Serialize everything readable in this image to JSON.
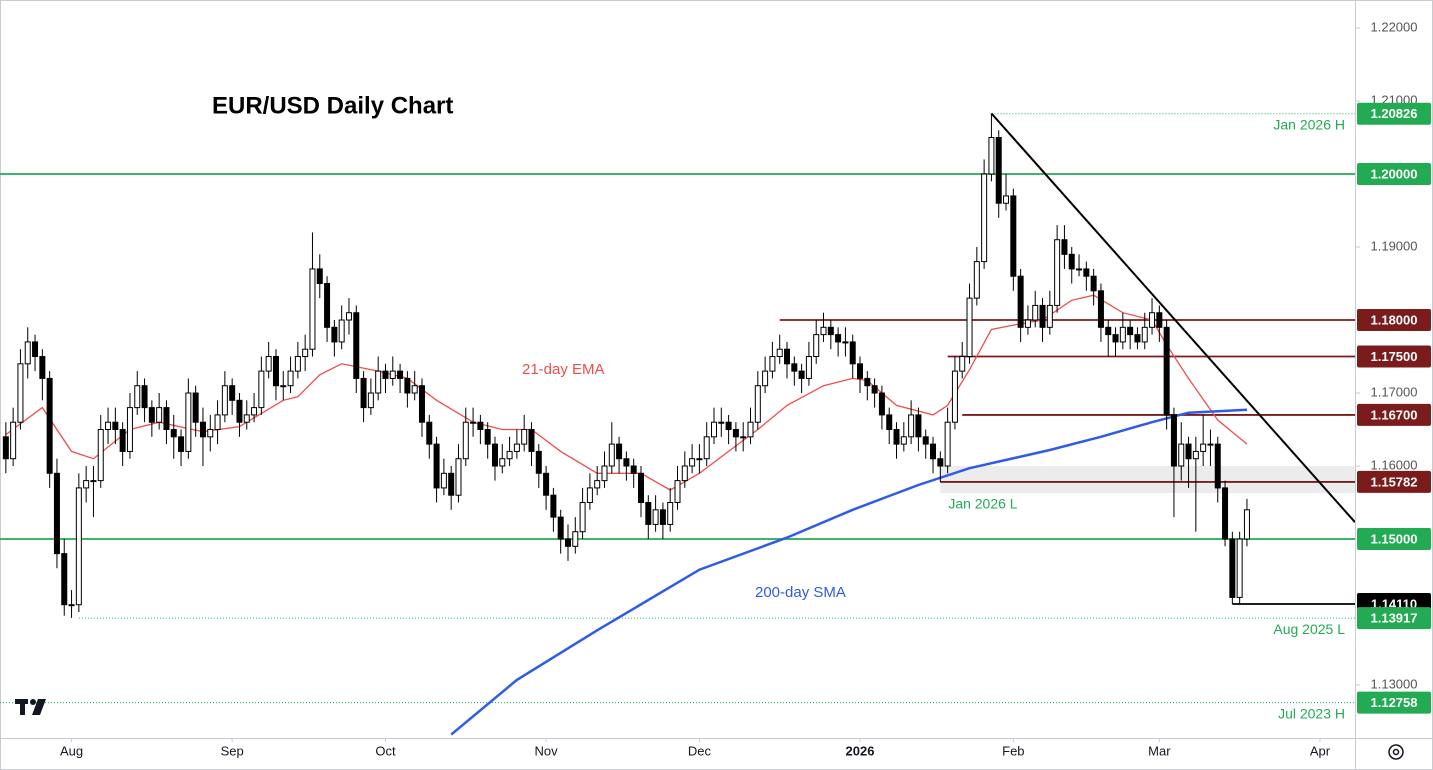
{
  "chart_data": {
    "type": "candlestick",
    "title": "EUR/USD Daily Chart",
    "xlim": [
      -0.8,
      184.8
    ],
    "xticks": [
      {
        "value": 9,
        "label": "Aug"
      },
      {
        "value": 31,
        "label": "Sep"
      },
      {
        "value": 52,
        "label": "Oct"
      },
      {
        "value": 74,
        "label": "Nov"
      },
      {
        "value": 95,
        "label": "Dec"
      },
      {
        "value": 117,
        "label": "2026"
      },
      {
        "value": 138,
        "label": "Feb"
      },
      {
        "value": 158,
        "label": "Mar"
      },
      {
        "value": 180,
        "label": "Apr"
      }
    ],
    "ylim": [
      1.12274,
      1.22384
    ],
    "yticks": [
      {
        "value": 1.13,
        "label": "1.13000"
      },
      {
        "value": 1.16,
        "label": "1.16000"
      },
      {
        "value": 1.17,
        "label": "1.17000"
      },
      {
        "value": 1.19,
        "label": "1.19000"
      },
      {
        "value": 1.21,
        "label": "1.21000"
      },
      {
        "value": 1.22,
        "label": "1.22000"
      }
    ],
    "up_color": "#ffffff",
    "down_color": "#000000",
    "candles": [
      [
        1.164,
        1.166,
        1.159,
        1.161
      ],
      [
        1.161,
        1.168,
        1.16,
        1.166
      ],
      [
        1.166,
        1.176,
        1.165,
        1.174
      ],
      [
        1.174,
        1.179,
        1.172,
        1.177
      ],
      [
        1.177,
        1.178,
        1.173,
        1.175
      ],
      [
        1.175,
        1.176,
        1.169,
        1.172
      ],
      [
        1.172,
        1.173,
        1.157,
        1.159
      ],
      [
        1.159,
        1.161,
        1.146,
        1.148
      ],
      [
        1.148,
        1.15,
        1.1395,
        1.141
      ],
      [
        1.141,
        1.143,
        1.1392,
        1.141
      ],
      [
        1.141,
        1.159,
        1.14,
        1.157
      ],
      [
        1.157,
        1.16,
        1.155,
        1.158
      ],
      [
        1.158,
        1.16,
        1.153,
        1.158
      ],
      [
        1.158,
        1.167,
        1.157,
        1.165
      ],
      [
        1.165,
        1.168,
        1.163,
        1.166
      ],
      [
        1.166,
        1.168,
        1.163,
        1.165
      ],
      [
        1.165,
        1.166,
        1.16,
        1.162
      ],
      [
        1.162,
        1.17,
        1.161,
        1.168
      ],
      [
        1.168,
        1.173,
        1.167,
        1.171
      ],
      [
        1.171,
        1.172,
        1.166,
        1.168
      ],
      [
        1.168,
        1.169,
        1.164,
        1.166
      ],
      [
        1.166,
        1.17,
        1.165,
        1.168
      ],
      [
        1.168,
        1.169,
        1.163,
        1.165
      ],
      [
        1.165,
        1.167,
        1.161,
        1.164
      ],
      [
        1.164,
        1.165,
        1.16,
        1.162
      ],
      [
        1.162,
        1.172,
        1.161,
        1.17
      ],
      [
        1.17,
        1.171,
        1.164,
        1.166
      ],
      [
        1.166,
        1.168,
        1.16,
        1.164
      ],
      [
        1.164,
        1.167,
        1.162,
        1.165
      ],
      [
        1.165,
        1.169,
        1.163,
        1.167
      ],
      [
        1.167,
        1.173,
        1.166,
        1.171
      ],
      [
        1.171,
        1.172,
        1.167,
        1.169
      ],
      [
        1.169,
        1.17,
        1.164,
        1.166
      ],
      [
        1.166,
        1.169,
        1.165,
        1.167
      ],
      [
        1.167,
        1.17,
        1.166,
        1.168
      ],
      [
        1.168,
        1.175,
        1.167,
        1.173
      ],
      [
        1.173,
        1.177,
        1.172,
        1.175
      ],
      [
        1.175,
        1.176,
        1.169,
        1.171
      ],
      [
        1.171,
        1.173,
        1.169,
        1.171
      ],
      [
        1.171,
        1.175,
        1.17,
        1.173
      ],
      [
        1.173,
        1.177,
        1.172,
        1.175
      ],
      [
        1.175,
        1.178,
        1.173,
        1.176
      ],
      [
        1.176,
        1.192,
        1.175,
        1.187
      ],
      [
        1.187,
        1.189,
        1.183,
        1.185
      ],
      [
        1.185,
        1.186,
        1.177,
        1.179
      ],
      [
        1.179,
        1.18,
        1.175,
        1.177
      ],
      [
        1.177,
        1.182,
        1.176,
        1.18
      ],
      [
        1.18,
        1.183,
        1.178,
        1.181
      ],
      [
        1.181,
        1.182,
        1.17,
        1.172
      ],
      [
        1.172,
        1.173,
        1.166,
        1.168
      ],
      [
        1.168,
        1.172,
        1.167,
        1.17
      ],
      [
        1.17,
        1.175,
        1.169,
        1.173
      ],
      [
        1.173,
        1.174,
        1.17,
        1.172
      ],
      [
        1.172,
        1.175,
        1.171,
        1.173
      ],
      [
        1.173,
        1.174,
        1.17,
        1.172
      ],
      [
        1.172,
        1.173,
        1.168,
        1.17
      ],
      [
        1.17,
        1.173,
        1.169,
        1.171
      ],
      [
        1.171,
        1.172,
        1.164,
        1.166
      ],
      [
        1.166,
        1.167,
        1.161,
        1.163
      ],
      [
        1.163,
        1.164,
        1.155,
        1.157
      ],
      [
        1.157,
        1.161,
        1.156,
        1.159
      ],
      [
        1.159,
        1.16,
        1.154,
        1.156
      ],
      [
        1.156,
        1.163,
        1.155,
        1.161
      ],
      [
        1.161,
        1.168,
        1.16,
        1.166
      ],
      [
        1.166,
        1.168,
        1.164,
        1.166
      ],
      [
        1.166,
        1.167,
        1.163,
        1.165
      ],
      [
        1.165,
        1.166,
        1.161,
        1.163
      ],
      [
        1.163,
        1.164,
        1.158,
        1.16
      ],
      [
        1.16,
        1.163,
        1.159,
        1.161
      ],
      [
        1.161,
        1.164,
        1.16,
        1.162
      ],
      [
        1.162,
        1.165,
        1.161,
        1.163
      ],
      [
        1.163,
        1.167,
        1.162,
        1.165
      ],
      [
        1.165,
        1.166,
        1.16,
        1.162
      ],
      [
        1.162,
        1.163,
        1.157,
        1.159
      ],
      [
        1.159,
        1.16,
        1.154,
        1.156
      ],
      [
        1.156,
        1.157,
        1.151,
        1.153
      ],
      [
        1.153,
        1.154,
        1.148,
        1.15
      ],
      [
        1.15,
        1.152,
        1.147,
        1.149
      ],
      [
        1.149,
        1.153,
        1.148,
        1.151
      ],
      [
        1.151,
        1.157,
        1.15,
        1.155
      ],
      [
        1.155,
        1.159,
        1.154,
        1.157
      ],
      [
        1.157,
        1.16,
        1.156,
        1.158
      ],
      [
        1.158,
        1.162,
        1.157,
        1.16
      ],
      [
        1.16,
        1.166,
        1.159,
        1.163
      ],
      [
        1.163,
        1.164,
        1.159,
        1.161
      ],
      [
        1.161,
        1.162,
        1.158,
        1.16
      ],
      [
        1.16,
        1.161,
        1.157,
        1.159
      ],
      [
        1.159,
        1.16,
        1.153,
        1.155
      ],
      [
        1.155,
        1.156,
        1.15,
        1.152
      ],
      [
        1.152,
        1.156,
        1.151,
        1.154
      ],
      [
        1.154,
        1.155,
        1.15,
        1.152
      ],
      [
        1.152,
        1.157,
        1.151,
        1.155
      ],
      [
        1.155,
        1.16,
        1.154,
        1.158
      ],
      [
        1.158,
        1.162,
        1.157,
        1.16
      ],
      [
        1.16,
        1.163,
        1.159,
        1.161
      ],
      [
        1.161,
        1.163,
        1.159,
        1.161
      ],
      [
        1.161,
        1.166,
        1.16,
        1.164
      ],
      [
        1.164,
        1.168,
        1.163,
        1.166
      ],
      [
        1.166,
        1.168,
        1.164,
        1.166
      ],
      [
        1.166,
        1.167,
        1.163,
        1.165
      ],
      [
        1.165,
        1.166,
        1.162,
        1.164
      ],
      [
        1.164,
        1.166,
        1.162,
        1.164
      ],
      [
        1.164,
        1.168,
        1.163,
        1.166
      ],
      [
        1.166,
        1.173,
        1.165,
        1.171
      ],
      [
        1.171,
        1.175,
        1.17,
        1.173
      ],
      [
        1.173,
        1.177,
        1.172,
        1.175
      ],
      [
        1.175,
        1.178,
        1.174,
        1.176
      ],
      [
        1.176,
        1.177,
        1.172,
        1.174
      ],
      [
        1.174,
        1.175,
        1.171,
        1.173
      ],
      [
        1.173,
        1.174,
        1.17,
        1.172
      ],
      [
        1.172,
        1.177,
        1.171,
        1.175
      ],
      [
        1.175,
        1.18,
        1.174,
        1.178
      ],
      [
        1.178,
        1.181,
        1.177,
        1.179
      ],
      [
        1.179,
        1.18,
        1.176,
        1.178
      ],
      [
        1.178,
        1.179,
        1.175,
        1.177
      ],
      [
        1.177,
        1.179,
        1.175,
        1.177
      ],
      [
        1.177,
        1.178,
        1.172,
        1.174
      ],
      [
        1.174,
        1.175,
        1.17,
        1.172
      ],
      [
        1.172,
        1.173,
        1.169,
        1.171
      ],
      [
        1.171,
        1.172,
        1.168,
        1.17
      ],
      [
        1.17,
        1.171,
        1.165,
        1.167
      ],
      [
        1.167,
        1.168,
        1.163,
        1.165
      ],
      [
        1.165,
        1.166,
        1.161,
        1.163
      ],
      [
        1.163,
        1.166,
        1.162,
        1.164
      ],
      [
        1.164,
        1.169,
        1.163,
        1.167
      ],
      [
        1.167,
        1.168,
        1.162,
        1.164
      ],
      [
        1.164,
        1.165,
        1.161,
        1.163
      ],
      [
        1.163,
        1.164,
        1.159,
        1.161
      ],
      [
        1.161,
        1.162,
        1.1578,
        1.16
      ],
      [
        1.16,
        1.168,
        1.159,
        1.166
      ],
      [
        1.166,
        1.175,
        1.165,
        1.173
      ],
      [
        1.173,
        1.177,
        1.172,
        1.175
      ],
      [
        1.175,
        1.185,
        1.174,
        1.183
      ],
      [
        1.183,
        1.19,
        1.182,
        1.188
      ],
      [
        1.188,
        1.202,
        1.187,
        1.2
      ],
      [
        1.2,
        1.2083,
        1.199,
        1.205
      ],
      [
        1.205,
        1.206,
        1.194,
        1.196
      ],
      [
        1.196,
        1.2,
        1.195,
        1.197
      ],
      [
        1.197,
        1.198,
        1.184,
        1.186
      ],
      [
        1.186,
        1.187,
        1.177,
        1.179
      ],
      [
        1.179,
        1.182,
        1.178,
        1.18
      ],
      [
        1.18,
        1.184,
        1.179,
        1.182
      ],
      [
        1.182,
        1.183,
        1.177,
        1.179
      ],
      [
        1.179,
        1.184,
        1.178,
        1.182
      ],
      [
        1.182,
        1.193,
        1.181,
        1.191
      ],
      [
        1.191,
        1.193,
        1.187,
        1.189
      ],
      [
        1.189,
        1.19,
        1.185,
        1.187
      ],
      [
        1.187,
        1.189,
        1.186,
        1.187
      ],
      [
        1.187,
        1.188,
        1.184,
        1.186
      ],
      [
        1.186,
        1.187,
        1.182,
        1.184
      ],
      [
        1.184,
        1.185,
        1.177,
        1.179
      ],
      [
        1.179,
        1.18,
        1.175,
        1.178
      ],
      [
        1.178,
        1.179,
        1.175,
        1.177
      ],
      [
        1.177,
        1.181,
        1.176,
        1.179
      ],
      [
        1.179,
        1.18,
        1.176,
        1.178
      ],
      [
        1.178,
        1.179,
        1.176,
        1.177
      ],
      [
        1.177,
        1.181,
        1.176,
        1.179
      ],
      [
        1.179,
        1.183,
        1.178,
        1.181
      ],
      [
        1.181,
        1.182,
        1.177,
        1.179
      ],
      [
        1.179,
        1.18,
        1.165,
        1.167
      ],
      [
        1.167,
        1.168,
        1.153,
        1.16
      ],
      [
        1.16,
        1.166,
        1.158,
        1.163
      ],
      [
        1.163,
        1.164,
        1.157,
        1.161
      ],
      [
        1.161,
        1.164,
        1.151,
        1.162
      ],
      [
        1.162,
        1.167,
        1.16,
        1.163
      ],
      [
        1.163,
        1.165,
        1.16,
        1.163
      ],
      [
        1.163,
        1.164,
        1.155,
        1.157
      ],
      [
        1.157,
        1.158,
        1.149,
        1.15
      ],
      [
        1.15,
        1.151,
        1.1411,
        1.142
      ],
      [
        1.142,
        1.151,
        1.1411,
        1.15
      ],
      [
        1.15,
        1.1555,
        1.149,
        1.154
      ]
    ],
    "series": [
      {
        "name": "21-day EMA",
        "color": "#ef4d4d",
        "x": [
          0,
          5,
          9,
          12,
          17,
          21,
          27,
          32,
          38,
          40,
          43,
          46,
          51,
          55,
          59,
          64,
          68,
          72,
          76,
          81,
          87,
          91,
          95,
          99,
          103,
          107,
          112,
          116,
          118,
          122,
          127,
          129,
          132,
          135,
          138,
          142,
          146,
          149,
          153,
          157,
          159,
          162,
          166,
          170
        ],
        "values": [
          1.1643,
          1.168,
          1.162,
          1.161,
          1.165,
          1.166,
          1.1647,
          1.1654,
          1.169,
          1.1695,
          1.1725,
          1.174,
          1.173,
          1.172,
          1.169,
          1.166,
          1.165,
          1.165,
          1.162,
          1.159,
          1.159,
          1.1567,
          1.159,
          1.162,
          1.165,
          1.1683,
          1.171,
          1.172,
          1.1717,
          1.1683,
          1.167,
          1.1683,
          1.1732,
          1.1787,
          1.1793,
          1.18,
          1.1827,
          1.1834,
          1.181,
          1.18,
          1.1766,
          1.172,
          1.1663,
          1.163
        ]
      },
      {
        "name": "200-day SMA",
        "color": "#2e5ce6",
        "x": [
          61,
          70,
          81,
          95,
          107,
          116,
          125,
          132,
          143,
          150,
          157,
          162,
          170
        ],
        "values": [
          1.1232,
          1.1307,
          1.1375,
          1.1458,
          1.1502,
          1.154,
          1.1574,
          1.1597,
          1.1622,
          1.164,
          1.166,
          1.1673,
          1.1677
        ]
      }
    ],
    "levels": [
      {
        "price": 1.20826,
        "color": "#22ab52",
        "style": "dotted",
        "from": 135,
        "note": "Jan 2026 H"
      },
      {
        "price": {
          "value": 1.2,
          "label": "1.20000"
        },
        "color": "#22ab52",
        "style": "solid"
      },
      {
        "price": {
          "value": 1.18,
          "label": "1.18000"
        },
        "color": "#7a1c1c",
        "style": "solid",
        "from": 106
      },
      {
        "price": {
          "value": 1.175,
          "label": "1.17500"
        },
        "color": "#7a1c1c",
        "style": "solid",
        "from": 129
      },
      {
        "price": {
          "value": 1.167,
          "label": "1.16700"
        },
        "color": "#7a1c1c",
        "style": "solid",
        "from": 131
      },
      {
        "price": 1.15782,
        "color": "#7a1c1c",
        "style": "solid",
        "from": 128
      },
      {
        "price": {
          "value": 1.15,
          "label": "1.15000"
        },
        "color": "#22ab52",
        "style": "solid"
      },
      {
        "price": {
          "value": 1.1411,
          "label": "1.14110"
        },
        "color": "#000000",
        "style": "solid",
        "from": 168
      },
      {
        "price": 1.13917,
        "color": "#22ab52",
        "style": "dotted",
        "from": 10,
        "note": "Aug 2025 L"
      },
      {
        "price": 1.12758,
        "color": "#22ab52",
        "style": "dotted",
        "note": "Jul 2023 H"
      }
    ],
    "zone": {
      "range": [
        1.1563,
        1.16
      ],
      "from": 128,
      "color": "#d9d9d9",
      "note": "Jan 2026 L",
      "note_color": "#22ab52"
    },
    "trendline": {
      "x": [
        135,
        184.8
      ],
      "y": [
        1.2083,
        1.1523
      ],
      "color": "#000000"
    }
  }
}
